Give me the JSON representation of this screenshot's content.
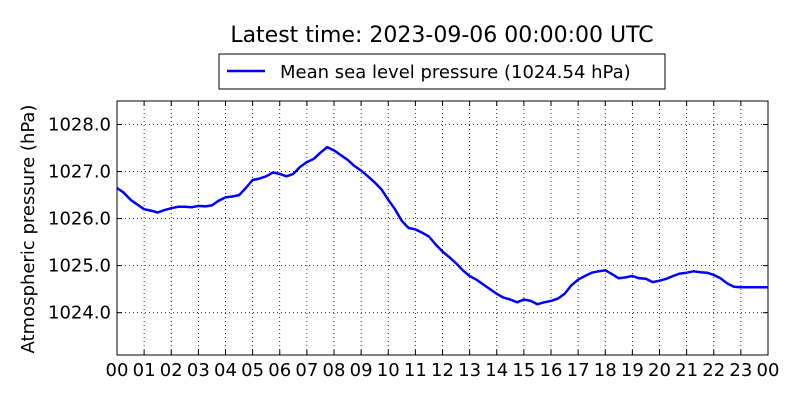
{
  "chart_data": {
    "type": "line",
    "title": "Latest time: 2023-09-06 00:00:00 UTC",
    "xlabel": "",
    "ylabel": "Atmospheric pressure (hPa)",
    "xlim": [
      0,
      24
    ],
    "ylim": [
      1023.1,
      1028.5
    ],
    "grid": true,
    "legend_position": "top-center",
    "x_tick_labels": [
      "00",
      "01",
      "02",
      "03",
      "04",
      "05",
      "06",
      "07",
      "08",
      "09",
      "10",
      "11",
      "12",
      "13",
      "14",
      "15",
      "16",
      "17",
      "18",
      "19",
      "20",
      "21",
      "22",
      "23",
      "00"
    ],
    "y_ticks": [
      1024.0,
      1025.0,
      1026.0,
      1027.0,
      1028.0
    ],
    "y_tick_labels": [
      "1024.0",
      "1025.0",
      "1026.0",
      "1027.0",
      "1028.0"
    ],
    "series": [
      {
        "name": "Mean sea level pressure (1024.54 hPa)",
        "color": "#0000ff",
        "x": [
          0,
          0.25,
          0.5,
          0.75,
          1.0,
          1.25,
          1.5,
          1.75,
          2.0,
          2.25,
          2.5,
          2.75,
          3.0,
          3.25,
          3.5,
          3.75,
          4.0,
          4.25,
          4.5,
          4.75,
          5.0,
          5.25,
          5.5,
          5.75,
          6.0,
          6.25,
          6.5,
          6.75,
          7.0,
          7.25,
          7.5,
          7.75,
          8.0,
          8.25,
          8.5,
          8.75,
          9.0,
          9.25,
          9.5,
          9.75,
          10.0,
          10.25,
          10.5,
          10.75,
          11.0,
          11.25,
          11.5,
          11.75,
          12.0,
          12.25,
          12.5,
          12.75,
          13.0,
          13.25,
          13.5,
          13.75,
          14.0,
          14.25,
          14.5,
          14.75,
          15.0,
          15.25,
          15.5,
          15.75,
          16.0,
          16.25,
          16.5,
          16.75,
          17.0,
          17.25,
          17.5,
          17.75,
          18.0,
          18.25,
          18.5,
          18.75,
          19.0,
          19.25,
          19.5,
          19.75,
          20.0,
          20.25,
          20.5,
          20.75,
          21.0,
          21.25,
          21.5,
          21.75,
          22.0,
          22.25,
          22.5,
          22.75,
          23.0,
          23.25,
          23.5,
          23.75,
          24.0
        ],
        "y": [
          1026.65,
          1026.55,
          1026.4,
          1026.3,
          1026.2,
          1026.17,
          1026.13,
          1026.18,
          1026.22,
          1026.25,
          1026.25,
          1026.24,
          1026.27,
          1026.26,
          1026.28,
          1026.38,
          1026.45,
          1026.47,
          1026.5,
          1026.65,
          1026.82,
          1026.85,
          1026.9,
          1026.98,
          1026.95,
          1026.9,
          1026.95,
          1027.1,
          1027.2,
          1027.27,
          1027.4,
          1027.52,
          1027.45,
          1027.35,
          1027.25,
          1027.12,
          1027.02,
          1026.9,
          1026.77,
          1026.62,
          1026.4,
          1026.2,
          1025.95,
          1025.8,
          1025.77,
          1025.7,
          1025.62,
          1025.45,
          1025.3,
          1025.18,
          1025.05,
          1024.9,
          1024.78,
          1024.7,
          1024.6,
          1024.5,
          1024.4,
          1024.32,
          1024.28,
          1024.22,
          1024.28,
          1024.25,
          1024.18,
          1024.22,
          1024.25,
          1024.3,
          1024.4,
          1024.58,
          1024.7,
          1024.78,
          1024.85,
          1024.88,
          1024.9,
          1024.82,
          1024.73,
          1024.75,
          1024.78,
          1024.73,
          1024.72,
          1024.65,
          1024.68,
          1024.72,
          1024.78,
          1024.83,
          1024.85,
          1024.88,
          1024.86,
          1024.85,
          1024.8,
          1024.73,
          1024.62,
          1024.55,
          1024.54,
          1024.54,
          1024.54,
          1024.54,
          1024.54
        ]
      }
    ]
  }
}
